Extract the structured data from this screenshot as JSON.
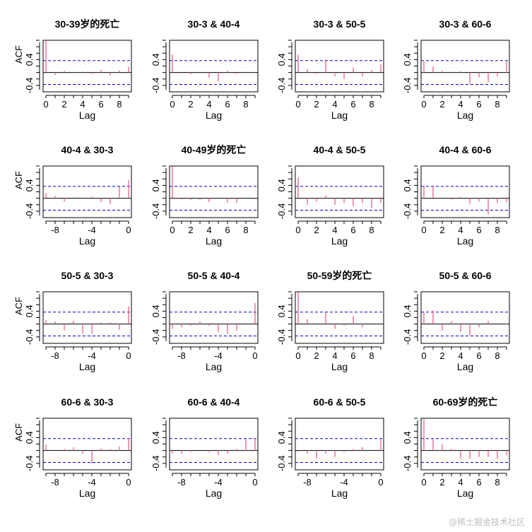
{
  "watermark": "@稀土掘金技术社区",
  "chart_data": {
    "type": "bar",
    "ylabel": "ACF",
    "xlabel": "Lag",
    "ylim": [
      -0.6,
      1.0
    ],
    "y_ticks": [
      "0.4",
      "-0.4"
    ],
    "conf_band": 0.37,
    "colors": {
      "bar": "#e75480",
      "ci": "#0000cc"
    },
    "panels": [
      {
        "title": "30-39岁的死亡",
        "lag_start": 0,
        "xticks": [
          "0",
          "2",
          "4",
          "6",
          "8"
        ],
        "values": [
          1.0,
          -0.08,
          0.05,
          -0.02,
          0.03,
          -0.05,
          0.08,
          -0.1,
          0.06,
          0.18
        ]
      },
      {
        "title": "30-3 & 40-4",
        "lag_start": 0,
        "xticks": [
          "0",
          "2",
          "4",
          "6",
          "8"
        ],
        "values": [
          0.56,
          -0.03,
          -0.05,
          0.02,
          -0.16,
          -0.28,
          0.05,
          -0.04,
          0.02,
          -0.02
        ]
      },
      {
        "title": "30-3 & 50-5",
        "lag_start": 0,
        "xticks": [
          "0",
          "2",
          "4",
          "6",
          "8"
        ],
        "values": [
          0.55,
          0.1,
          -0.04,
          0.4,
          -0.12,
          -0.2,
          0.15,
          -0.12,
          0.08,
          0.25
        ]
      },
      {
        "title": "30-3 & 60-6",
        "lag_start": 0,
        "xticks": [
          "0",
          "2",
          "4",
          "6",
          "8"
        ],
        "values": [
          0.35,
          0.18,
          0.05,
          0.02,
          0.04,
          -0.35,
          -0.15,
          -0.3,
          -0.12,
          0.35
        ]
      },
      {
        "title": "40-4 & 30-3",
        "lag_start": -9,
        "xticks": [
          "-8",
          "-4",
          "0"
        ],
        "values": [
          0.15,
          0.07,
          -0.1,
          0.03,
          0.02,
          0.05,
          -0.12,
          -0.18,
          0.35,
          0.56
        ]
      },
      {
        "title": "40-49岁的死亡",
        "lag_start": 0,
        "xticks": [
          "0",
          "2",
          "4",
          "6",
          "8"
        ],
        "values": [
          1.0,
          -0.04,
          -0.05,
          -0.05,
          -0.12,
          -0.02,
          -0.14,
          -0.14,
          0.02,
          -0.03
        ]
      },
      {
        "title": "40-4 & 50-5",
        "lag_start": 0,
        "xticks": [
          "0",
          "2",
          "4",
          "6",
          "8"
        ],
        "values": [
          0.65,
          -0.2,
          -0.1,
          0.08,
          -0.2,
          -0.15,
          -0.25,
          -0.15,
          -0.3,
          -0.15
        ]
      },
      {
        "title": "40-4 & 60-6",
        "lag_start": 0,
        "xticks": [
          "0",
          "2",
          "4",
          "6",
          "8"
        ],
        "values": [
          0.38,
          0.38,
          0.02,
          -0.04,
          0.04,
          -0.18,
          -0.1,
          -0.5,
          -0.15,
          -0.12
        ]
      },
      {
        "title": "50-5 & 30-3",
        "lag_start": -9,
        "xticks": [
          "-8",
          "-4",
          "0"
        ],
        "values": [
          0.12,
          0.08,
          -0.2,
          0.1,
          -0.3,
          -0.3,
          0.05,
          0.05,
          -0.18,
          0.55
        ]
      },
      {
        "title": "50-5 & 40-4",
        "lag_start": -9,
        "xticks": [
          "-8",
          "-4",
          "0"
        ],
        "values": [
          -0.15,
          -0.1,
          -0.05,
          0.08,
          -0.05,
          -0.25,
          -0.3,
          -0.2,
          0.02,
          0.65
        ]
      },
      {
        "title": "50-59岁的死亡",
        "lag_start": 0,
        "xticks": [
          "0",
          "2",
          "4",
          "6",
          "8"
        ],
        "values": [
          1.0,
          0.15,
          -0.02,
          0.35,
          -0.15,
          -0.05,
          0.25,
          -0.1,
          0.02,
          0.02
        ]
      },
      {
        "title": "50-5 & 60-6",
        "lag_start": 0,
        "xticks": [
          "0",
          "2",
          "4",
          "6",
          "8"
        ],
        "values": [
          0.35,
          0.42,
          -0.2,
          0.08,
          -0.25,
          -0.35,
          -0.1,
          0.1,
          0.02,
          0.02
        ]
      },
      {
        "title": "60-6 & 30-3",
        "lag_start": -9,
        "xticks": [
          "-8",
          "-4",
          "0"
        ],
        "values": [
          0.18,
          0.02,
          0.05,
          0.1,
          -0.1,
          -0.4,
          0.06,
          0.04,
          0.12,
          0.37
        ]
      },
      {
        "title": "60-6 & 40-4",
        "lag_start": -9,
        "xticks": [
          "-8",
          "-4",
          "0"
        ],
        "values": [
          -0.1,
          -0.1,
          -0.04,
          0.02,
          -0.05,
          -0.15,
          -0.1,
          0.05,
          0.35,
          0.38
        ]
      },
      {
        "title": "60-6 & 50-5",
        "lag_start": -9,
        "xticks": [
          "-8",
          "-4",
          "0"
        ],
        "values": [
          -0.04,
          -0.1,
          -0.25,
          -0.1,
          -0.2,
          -0.05,
          0.04,
          0.1,
          0.02,
          0.36
        ]
      },
      {
        "title": "60-69岁的死亡",
        "lag_start": 0,
        "xticks": [
          "0",
          "2",
          "4",
          "6",
          "8"
        ],
        "values": [
          1.0,
          0.35,
          0.2,
          0.05,
          -0.25,
          -0.25,
          -0.2,
          -0.2,
          -0.25,
          -0.15
        ]
      }
    ]
  }
}
